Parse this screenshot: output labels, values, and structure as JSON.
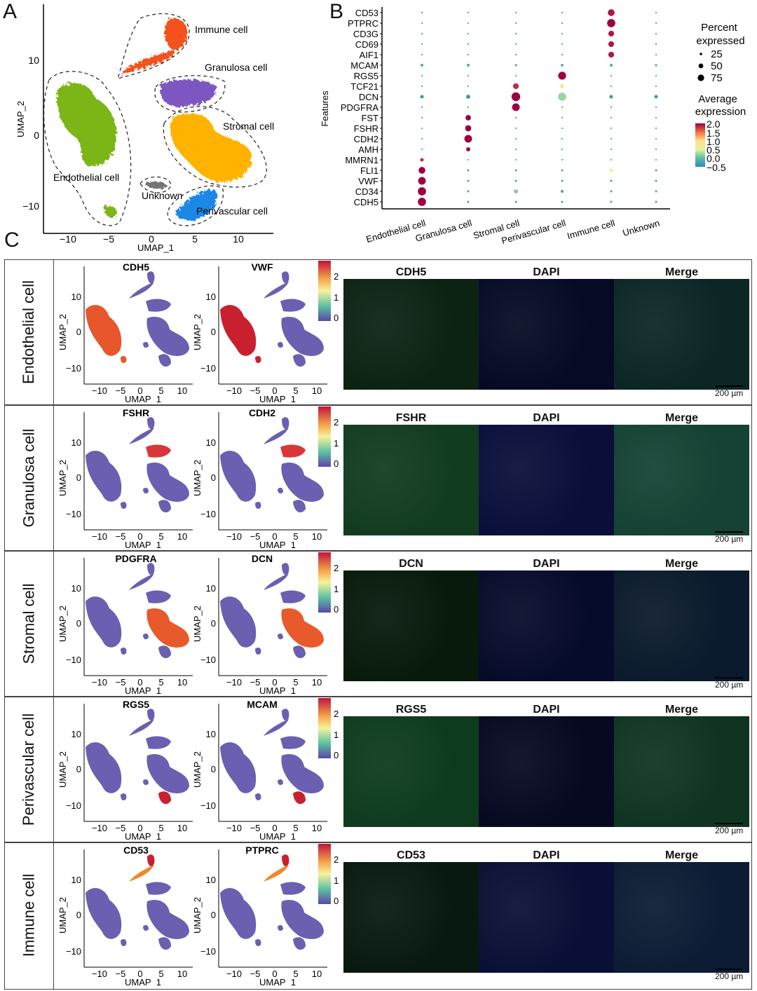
{
  "panels": {
    "a": "A",
    "b": "B",
    "c": "C"
  },
  "panel_a": {
    "xlabel": "UMAP_1",
    "ylabel": "UMAP_2",
    "xticks": [
      "−10",
      "−5",
      "0",
      "5",
      "10"
    ],
    "yticks": [
      "10",
      "0",
      "−10"
    ],
    "clusters": [
      {
        "name": "Immune cell",
        "color": "#f4511e"
      },
      {
        "name": "Granulosa cell",
        "color": "#7e57c2"
      },
      {
        "name": "Stromal cell",
        "color": "#ffb300"
      },
      {
        "name": "Endothelial cell",
        "color": "#7cb518"
      },
      {
        "name": "Unknown",
        "color": "#757575"
      },
      {
        "name": "Perivascular cell",
        "color": "#1e88e5"
      }
    ]
  },
  "chart_data": {
    "type": "dotplot",
    "ylabel": "Features",
    "features": [
      "CD53",
      "PTPRC",
      "CD3G",
      "CD69",
      "AIF1",
      "MCAM",
      "RGS5",
      "TCF21",
      "DCN",
      "PDGFRA",
      "FST",
      "FSHR",
      "CDH2",
      "AMH",
      "MMRN1",
      "FLI1",
      "VWF",
      "CD34",
      "CDH5"
    ],
    "cell_types": [
      "Endothelial cell",
      "Granulosa cell",
      "Stromal cell",
      "Perivascular cell",
      "Immune cell",
      "Unknown"
    ],
    "percent": [
      [
        2,
        2,
        2,
        2,
        55,
        2
      ],
      [
        2,
        2,
        2,
        2,
        80,
        2
      ],
      [
        2,
        2,
        2,
        2,
        40,
        2
      ],
      [
        2,
        2,
        2,
        2,
        40,
        2
      ],
      [
        2,
        2,
        2,
        2,
        40,
        2
      ],
      [
        8,
        8,
        5,
        8,
        8,
        5
      ],
      [
        2,
        2,
        2,
        75,
        2,
        2
      ],
      [
        2,
        2,
        40,
        20,
        2,
        2
      ],
      [
        15,
        20,
        90,
        80,
        15,
        15
      ],
      [
        2,
        2,
        70,
        2,
        2,
        2
      ],
      [
        2,
        35,
        2,
        2,
        2,
        2
      ],
      [
        2,
        45,
        2,
        2,
        2,
        2
      ],
      [
        2,
        70,
        2,
        2,
        2,
        2
      ],
      [
        2,
        20,
        2,
        2,
        2,
        2
      ],
      [
        15,
        2,
        2,
        2,
        2,
        2
      ],
      [
        55,
        5,
        5,
        5,
        15,
        5
      ],
      [
        70,
        5,
        5,
        5,
        5,
        5
      ],
      [
        80,
        5,
        20,
        10,
        5,
        5
      ],
      [
        80,
        5,
        5,
        5,
        5,
        5
      ]
    ],
    "avg_expression": [
      [
        -0.3,
        -0.3,
        -0.3,
        -0.3,
        1.9,
        -0.3
      ],
      [
        -0.3,
        -0.3,
        -0.3,
        -0.3,
        2.0,
        -0.3
      ],
      [
        -0.3,
        -0.3,
        -0.3,
        -0.3,
        1.9,
        -0.3
      ],
      [
        -0.3,
        -0.3,
        -0.3,
        -0.3,
        1.9,
        -0.3
      ],
      [
        -0.3,
        -0.3,
        -0.3,
        -0.3,
        1.9,
        -0.3
      ],
      [
        -0.4,
        -0.4,
        -0.4,
        -0.3,
        -0.4,
        -0.4
      ],
      [
        -0.3,
        -0.3,
        -0.3,
        2.0,
        -0.3,
        -0.3
      ],
      [
        -0.3,
        -0.3,
        1.8,
        0.8,
        -0.3,
        -0.3
      ],
      [
        -0.4,
        -0.4,
        2.0,
        0.2,
        -0.4,
        -0.4
      ],
      [
        -0.3,
        -0.3,
        2.0,
        -0.3,
        -0.3,
        -0.3
      ],
      [
        -0.3,
        2.0,
        -0.3,
        -0.3,
        -0.3,
        -0.3
      ],
      [
        -0.3,
        2.0,
        -0.3,
        -0.3,
        -0.3,
        -0.3
      ],
      [
        -0.3,
        2.0,
        -0.3,
        -0.3,
        -0.3,
        -0.3
      ],
      [
        -0.3,
        2.0,
        -0.3,
        -0.3,
        -0.3,
        -0.3
      ],
      [
        1.8,
        -0.3,
        -0.3,
        -0.3,
        -0.3,
        -0.3
      ],
      [
        2.0,
        -0.3,
        -0.3,
        -0.3,
        0.6,
        -0.3
      ],
      [
        2.0,
        -0.3,
        -0.3,
        -0.3,
        -0.3,
        -0.3
      ],
      [
        2.0,
        -0.3,
        0.1,
        -0.3,
        -0.3,
        -0.3
      ],
      [
        2.0,
        -0.3,
        -0.3,
        -0.3,
        -0.3,
        -0.3
      ]
    ],
    "size_legend": {
      "title_line1": "Percent",
      "title_line2": "expressed",
      "values": [
        "25",
        "50",
        "75"
      ]
    },
    "color_legend": {
      "title_line1": "Average",
      "title_line2": "expression",
      "ticks": [
        "2.0",
        "1.5",
        "1.0",
        "0.5",
        "0.0",
        "−0.5"
      ],
      "range": [
        -0.5,
        2.0
      ]
    }
  },
  "panel_c": {
    "umap_xlabel": "UMAP_1",
    "umap_ylabel": "UMAP_2",
    "umap_xticks": [
      "−10",
      "−5",
      "0",
      "5",
      "10"
    ],
    "umap_yticks": [
      "10",
      "0",
      "−10"
    ],
    "colorbar_ticks": [
      "2",
      "1",
      "0"
    ],
    "scalebar": "200 µm",
    "dapi_label": "DAPI",
    "merge_label": "Merge",
    "rows": [
      {
        "cell_type": "Endothelial cell",
        "gene1": "CDH5",
        "gene2": "VWF",
        "if_gene": "CDH5"
      },
      {
        "cell_type": "Granulosa cell",
        "gene1": "FSHR",
        "gene2": "CDH2",
        "if_gene": "FSHR"
      },
      {
        "cell_type": "Stromal cell",
        "gene1": "PDGFRA",
        "gene2": "DCN",
        "if_gene": "DCN"
      },
      {
        "cell_type": "Perivascular cell",
        "gene1": "RGS5",
        "gene2": "MCAM",
        "if_gene": "RGS5"
      },
      {
        "cell_type": "Immune cell",
        "gene1": "CD53",
        "gene2": "PTPRC",
        "if_gene": "CD53"
      }
    ]
  }
}
